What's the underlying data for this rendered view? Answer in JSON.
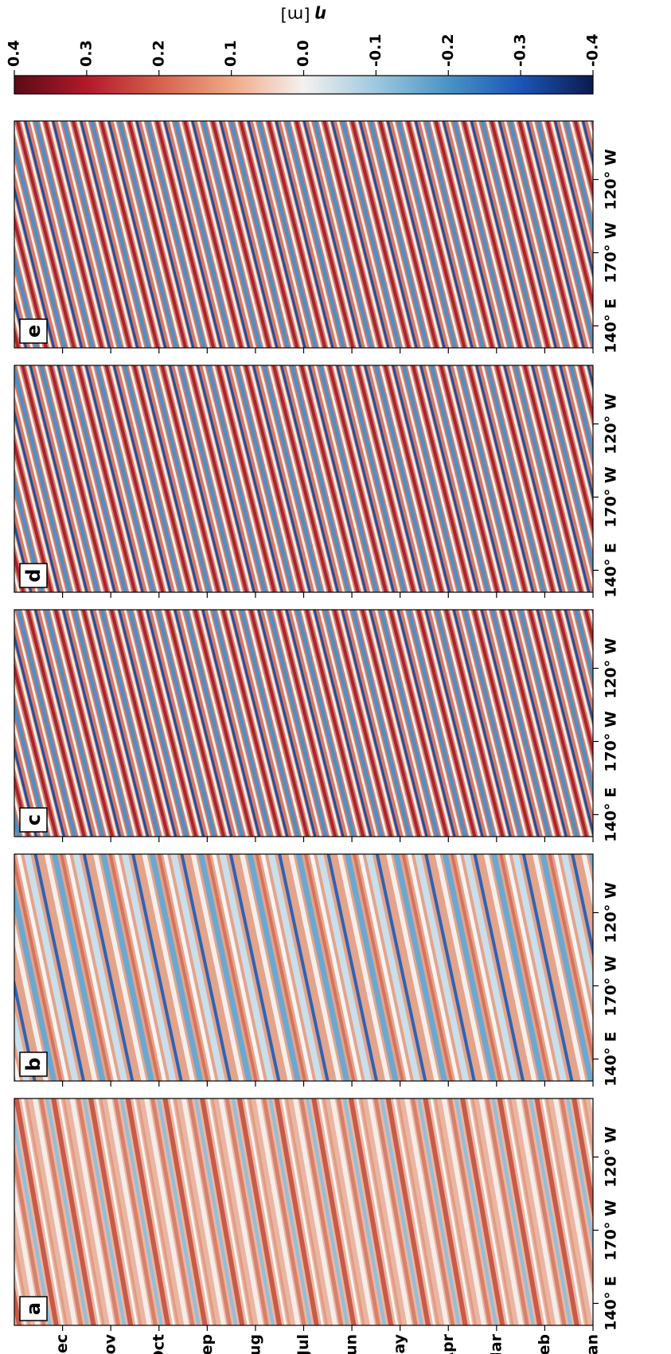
{
  "chart_data": {
    "type": "heatmap",
    "panels": [
      "a",
      "b",
      "c",
      "d",
      "e"
    ],
    "categories": [
      "Jan",
      "Feb",
      "Mar",
      "Apr",
      "May",
      "Jun",
      "Jul",
      "Aug",
      "Sep",
      "Oct",
      "Nov",
      "Dec"
    ],
    "xlim": [
      125,
      280
    ],
    "xticks": [
      {
        "value": 140,
        "label": "140° E"
      },
      {
        "value": 190,
        "label": "170° W"
      },
      {
        "value": 240,
        "label": "120° W"
      }
    ],
    "colorbar": {
      "symbol": "η",
      "unit": "[m]",
      "lim": [
        -0.4,
        0.4
      ],
      "ticks": [
        0.4,
        0.3,
        0.2,
        0.1,
        {
          "value": 0,
          "label": "0.0"
        },
        -0.1,
        -0.2,
        -0.3,
        -0.4
      ],
      "colors": [
        "#5a0b16",
        "#b2182b",
        "#d6604d",
        "#f0a886",
        "#f4f1ef",
        "#9ec8de",
        "#4a93c4",
        "#1b55b8",
        "#0c1a4e"
      ]
    }
  }
}
